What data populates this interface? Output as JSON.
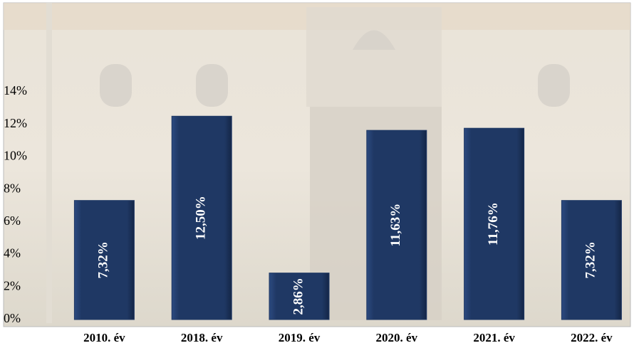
{
  "chart_data": {
    "type": "bar",
    "categories": [
      "2010. év",
      "2018. év",
      "2019. év",
      "2020. év",
      "2021. év",
      "2022. év"
    ],
    "values": [
      7.32,
      12.5,
      2.86,
      11.63,
      11.76,
      7.32
    ],
    "value_labels": [
      "7,32%",
      "12,50%",
      "2,86%",
      "11,63%",
      "11,76%",
      "7,32%"
    ],
    "color": "#1f3864",
    "ylim": [
      0,
      14
    ],
    "yticks": [
      {
        "value": 0,
        "label": "0%"
      },
      {
        "value": 2,
        "label": "2%"
      },
      {
        "value": 4,
        "label": "4%"
      },
      {
        "value": 6,
        "label": "6%"
      },
      {
        "value": 8,
        "label": "8%"
      },
      {
        "value": 10,
        "label": "10%"
      },
      {
        "value": 12,
        "label": "12%"
      },
      {
        "value": 14,
        "label": "14%"
      }
    ],
    "grid": false
  }
}
